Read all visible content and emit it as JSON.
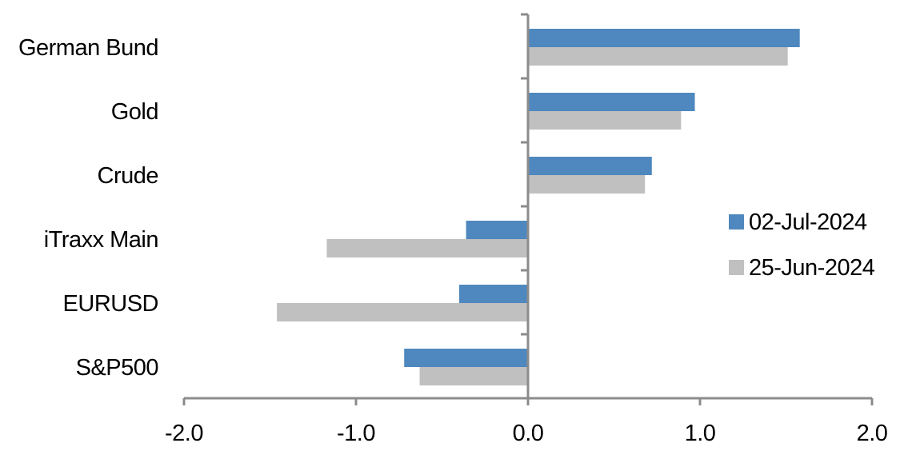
{
  "chart_data": {
    "type": "bar",
    "orientation": "horizontal",
    "categories": [
      "German Bund",
      "Gold",
      "Crude",
      "iTraxx Main",
      "EURUSD",
      "S&P500"
    ],
    "series": [
      {
        "name": "02-Jul-2024",
        "color": "#4f88be",
        "values": [
          1.58,
          0.97,
          0.72,
          -0.36,
          -0.4,
          -0.72
        ]
      },
      {
        "name": "25-Jun-2024",
        "color": "#c0c0c0",
        "values": [
          1.51,
          0.89,
          0.68,
          -1.17,
          -1.46,
          -0.63
        ]
      }
    ],
    "xlim": [
      -2.0,
      2.0
    ],
    "xticks": [
      "-2.0",
      "-1.0",
      "0.0",
      "1.0",
      "2.0"
    ],
    "xtick_values": [
      -2,
      -1,
      0,
      1,
      2
    ],
    "title": "",
    "xlabel": "",
    "ylabel": "",
    "grid": false,
    "legend_position": "right"
  }
}
